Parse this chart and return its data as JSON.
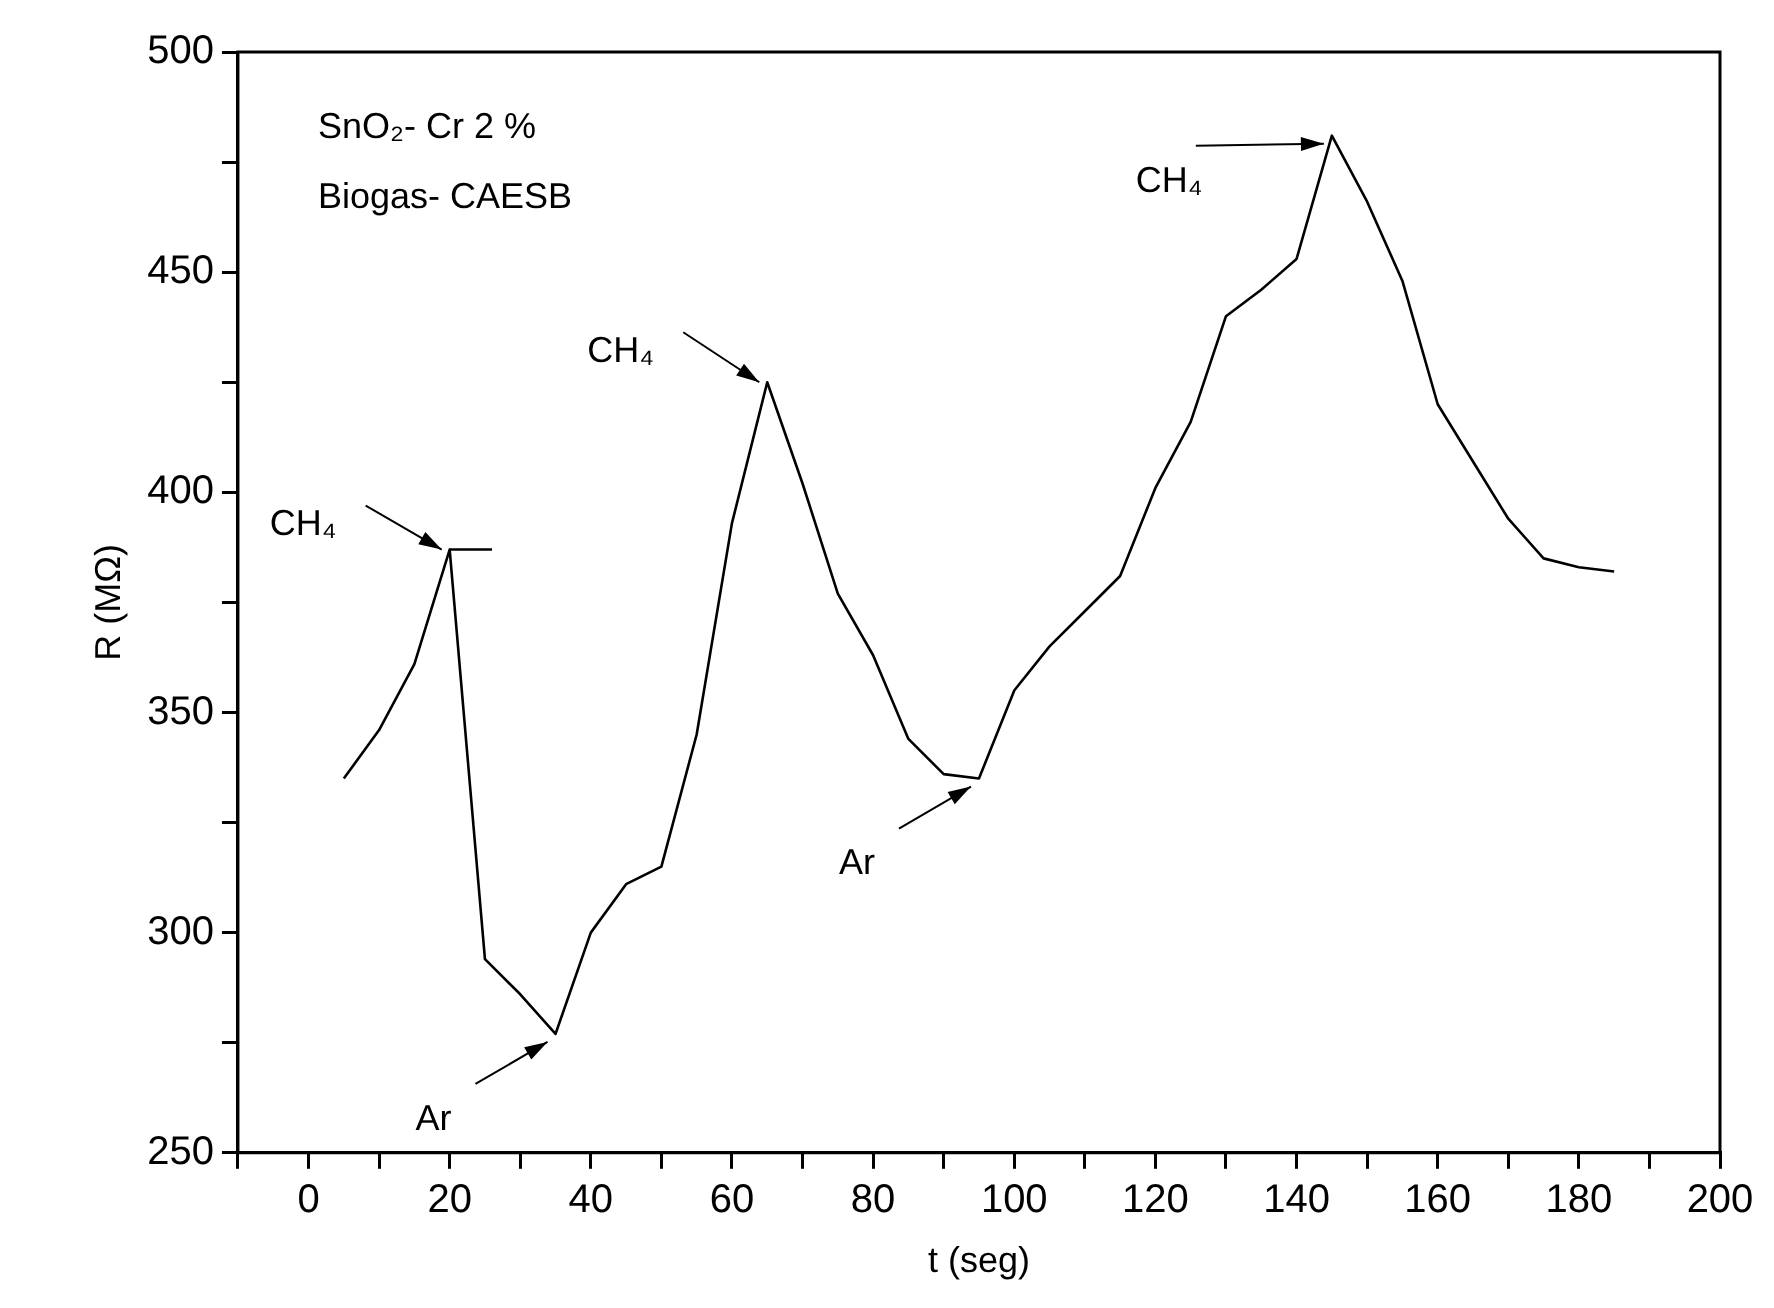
{
  "chart_data": {
    "type": "line",
    "xlabel": "t (seg)",
    "ylabel": "R (MΩ)",
    "xlim": [
      -10,
      200
    ],
    "xticks": [
      {
        "value": -10,
        "label": null
      },
      0,
      {
        "value": 10,
        "label": null
      },
      20,
      {
        "value": 30,
        "label": null
      },
      40,
      {
        "value": 50,
        "label": null
      },
      60,
      {
        "value": 70,
        "label": null
      },
      80,
      {
        "value": 90,
        "label": null
      },
      100,
      {
        "value": 110,
        "label": null
      },
      120,
      {
        "value": 130,
        "label": null
      },
      140,
      {
        "value": 150,
        "label": null
      },
      160,
      {
        "value": 170,
        "label": null
      },
      180,
      {
        "value": 190,
        "label": null
      },
      200
    ],
    "ylim": [
      250,
      500
    ],
    "yticks": [
      250,
      {
        "value": 275,
        "label": null
      },
      300,
      {
        "value": 325,
        "label": null
      },
      350,
      {
        "value": 375,
        "label": null
      },
      400,
      {
        "value": 425,
        "label": null
      },
      450,
      {
        "value": 475,
        "label": null
      },
      500
    ],
    "grid": false,
    "legend": false,
    "marker": "none",
    "line_style": "solid",
    "series": [
      {
        "color": "#000000",
        "x": [
          5,
          10,
          15,
          20,
          25,
          30,
          35,
          40,
          45,
          50,
          55,
          60,
          65,
          70,
          75,
          80,
          85,
          90,
          95,
          100,
          105,
          110,
          115,
          120,
          125,
          130,
          135,
          140,
          145,
          150,
          155,
          160,
          165,
          170,
          175,
          180,
          185
        ],
        "values": [
          335,
          346,
          361,
          387,
          294,
          286,
          277,
          300,
          311,
          315,
          345,
          393,
          425,
          402,
          377,
          363,
          344,
          336,
          335,
          355,
          365,
          373,
          381,
          401,
          416,
          440,
          446,
          453,
          481,
          466,
          448,
          420,
          407,
          394,
          385,
          383,
          382
        ]
      },
      {
        "color": "#000000",
        "x": [
          20,
          26
        ],
        "values": [
          387,
          387
        ]
      }
    ],
    "annotations": [
      "SnO₂- Cr 2 %",
      "Biogas- CAESB",
      {
        "text": "CH₄",
        "x": 20,
        "y": 387
      },
      {
        "text": "Ar",
        "x": 35,
        "y": 277
      },
      {
        "text": "CH₄",
        "x": 65,
        "y": 425
      },
      {
        "text": "Ar",
        "x": 95,
        "y": 335
      },
      {
        "text": "CH₄",
        "x": 145,
        "y": 481
      }
    ]
  }
}
